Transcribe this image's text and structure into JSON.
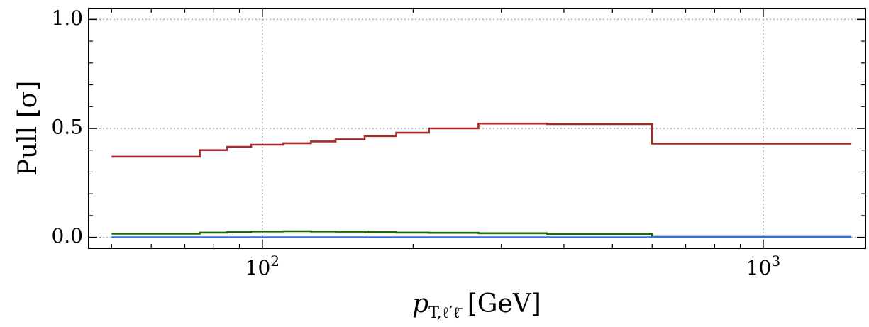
{
  "chart_data": {
    "type": "line",
    "step": "post",
    "xscale": "log",
    "xlim": [
      45,
      1600
    ],
    "ylim": [
      -0.05,
      1.05
    ],
    "xlabel_main": "p",
    "xlabel_sub": "T,ℓ′ℓ̄",
    "xlabel_unit": "[GeV]",
    "ylabel": "Pull [σ]",
    "yticks": [
      0.0,
      0.5,
      1.0
    ],
    "ytick_labels": [
      "0.0",
      "0.5",
      "1.0"
    ],
    "xticks_major": [
      100,
      1000
    ],
    "xtick_labels": [
      {
        "base": "10",
        "exp": "2"
      },
      {
        "base": "10",
        "exp": "3"
      }
    ],
    "grid": true,
    "bin_edges": [
      50,
      75,
      85,
      95,
      110,
      125,
      140,
      160,
      185,
      215,
      270,
      370,
      600,
      1500
    ],
    "series": [
      {
        "color": "#a52a2a",
        "values": [
          0.37,
          0.4,
          0.415,
          0.425,
          0.432,
          0.44,
          0.45,
          0.465,
          0.48,
          0.5,
          0.522,
          0.52,
          0.43
        ]
      },
      {
        "color": "#1a6b00",
        "values": [
          0.017,
          0.022,
          0.025,
          0.027,
          0.028,
          0.027,
          0.026,
          0.024,
          0.022,
          0.021,
          0.019,
          0.016,
          0.002
        ]
      },
      {
        "color": "#3a6fe0",
        "values": [
          0.0,
          0.0,
          0.0,
          0.0,
          0.0,
          0.0,
          0.0,
          0.0,
          0.0,
          0.0,
          0.0,
          0.0,
          0.0
        ]
      }
    ]
  }
}
